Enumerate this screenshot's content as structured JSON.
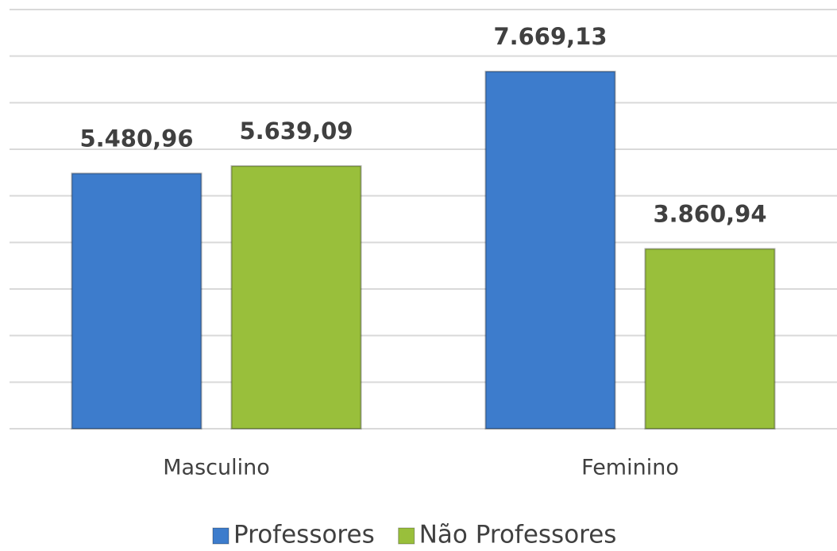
{
  "chart_data": {
    "type": "bar",
    "categories": [
      "Masculino",
      "Feminino"
    ],
    "series": [
      {
        "name": "Professores",
        "color": "#3d7ccc",
        "values": [
          5480.96,
          7669.13
        ],
        "value_labels": [
          "5.480,96",
          "7.669,13"
        ]
      },
      {
        "name": "Não Professores",
        "color": "#99bf3b",
        "values": [
          5639.09,
          3860.94
        ],
        "value_labels": [
          "5.639,09",
          "3.860,94"
        ]
      }
    ],
    "ylim": [
      0,
      9000
    ],
    "yticks": [
      0,
      1000,
      2000,
      3000,
      4000,
      5000,
      6000,
      7000,
      8000,
      9000
    ],
    "grid": true,
    "legend": "bottom"
  }
}
